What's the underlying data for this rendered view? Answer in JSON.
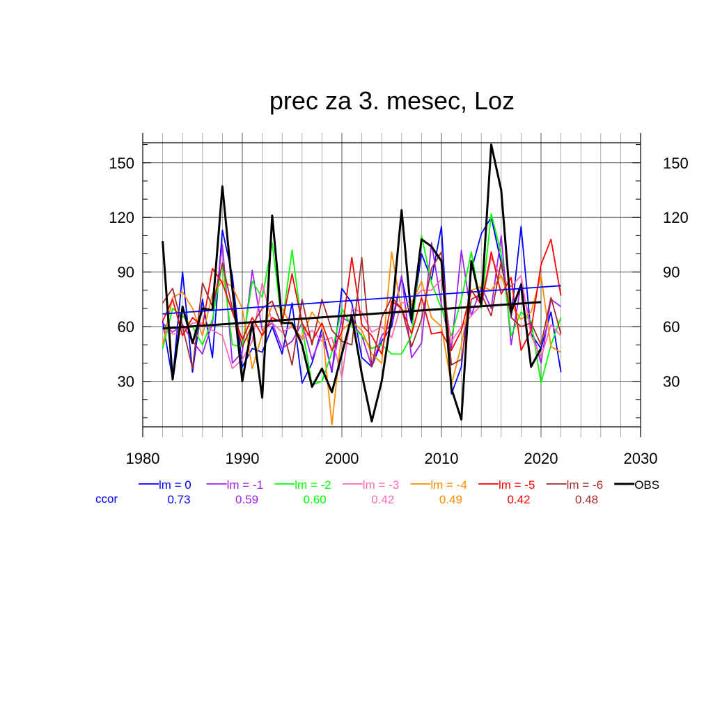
{
  "chart_data": {
    "type": "line",
    "title": "prec za 3. mesec, Loz",
    "xlim": [
      1980,
      2030
    ],
    "ylim": [
      5,
      161
    ],
    "x_ticks": [
      1980,
      1990,
      2000,
      2010,
      2020,
      2030
    ],
    "y_ticks": [
      30,
      60,
      90,
      120,
      150
    ],
    "grid": true,
    "legend_position": "below",
    "ccor_label": "ccor",
    "x": [
      1982,
      1983,
      1984,
      1985,
      1986,
      1987,
      1988,
      1989,
      1990,
      1991,
      1992,
      1993,
      1994,
      1995,
      1996,
      1997,
      1998,
      1999,
      2000,
      2001,
      2002,
      2003,
      2004,
      2005,
      2006,
      2007,
      2008,
      2009,
      2010,
      2011,
      2012,
      2013,
      2014,
      2015,
      2016,
      2017,
      2018,
      2019,
      2020,
      2021,
      2022
    ],
    "series": [
      {
        "name": "lm = 0",
        "ccor": "0.73",
        "color": "#0000ff",
        "values": [
          63,
          31,
          90,
          35,
          75,
          43,
          113,
          88,
          38,
          48,
          46,
          60,
          45,
          73,
          29,
          40,
          59,
          35,
          81,
          73,
          43,
          38,
          52,
          60,
          87,
          62,
          100,
          86,
          115,
          23,
          38,
          91,
          111,
          120,
          95,
          65,
          115,
          56,
          48,
          68,
          35
        ],
        "trend": [
          67.0,
          82.5
        ]
      },
      {
        "name": "lm = -1",
        "ccor": "0.59",
        "color": "#a020f0",
        "values": [
          62,
          57,
          61,
          52,
          45,
          62,
          105,
          40,
          46,
          91,
          58,
          62,
          48,
          52,
          62,
          42,
          56,
          36,
          65,
          62,
          55,
          38,
          55,
          62,
          88,
          43,
          51,
          106,
          72,
          48,
          102,
          66,
          82,
          70,
          110,
          50,
          84,
          60,
          40,
          75,
          71
        ],
        "trend": null
      },
      {
        "name": "lm = -2",
        "ccor": "0.60",
        "color": "#00ff00",
        "values": [
          48,
          70,
          66,
          60,
          50,
          64,
          95,
          50,
          49,
          85,
          76,
          106,
          61,
          102,
          60,
          28,
          30,
          46,
          70,
          60,
          55,
          48,
          50,
          45,
          45,
          55,
          110,
          84,
          70,
          55,
          75,
          101,
          70,
          122,
          100,
          55,
          68,
          63,
          29,
          50,
          65
        ],
        "trend": null
      },
      {
        "name": "lm = -3",
        "ccor": "0.42",
        "color": "#ff69b4",
        "values": [
          58,
          56,
          56,
          62,
          62,
          58,
          55,
          37,
          42,
          52,
          84,
          62,
          57,
          60,
          53,
          58,
          52,
          54,
          32,
          70,
          68,
          57,
          60,
          54,
          73,
          74,
          80,
          80,
          86,
          52,
          60,
          66,
          72,
          98,
          87,
          82,
          88,
          55,
          43,
          61,
          55
        ],
        "trend": null
      },
      {
        "name": "lm = -4",
        "ccor": "0.49",
        "color": "#ff8c00",
        "values": [
          50,
          76,
          79,
          70,
          55,
          78,
          85,
          82,
          70,
          37,
          56,
          72,
          70,
          60,
          54,
          68,
          60,
          6,
          58,
          63,
          58,
          45,
          40,
          101,
          68,
          72,
          85,
          65,
          60,
          28,
          50,
          80,
          82,
          80,
          88,
          72,
          64,
          68,
          88,
          49,
          46
        ],
        "trend": null
      },
      {
        "name": "lm = -5",
        "ccor": "0.42",
        "color": "#ff0000",
        "values": [
          63,
          75,
          55,
          65,
          60,
          92,
          84,
          68,
          53,
          65,
          55,
          65,
          62,
          89,
          62,
          52,
          62,
          47,
          57,
          98,
          61,
          55,
          45,
          74,
          70,
          56,
          76,
          56,
          57,
          47,
          58,
          80,
          72,
          101,
          78,
          87,
          47,
          58,
          94,
          108,
          77
        ],
        "trend": null
      },
      {
        "name": "lm = -6",
        "ccor": "0.48",
        "color": "#a52a2a",
        "values": [
          73,
          81,
          60,
          37,
          84,
          71,
          95,
          70,
          49,
          61,
          70,
          74,
          60,
          39,
          75,
          50,
          75,
          58,
          52,
          50,
          98,
          38,
          65,
          76,
          70,
          49,
          64,
          92,
          101,
          39,
          42,
          75,
          78,
          66,
          96,
          65,
          60,
          62,
          50,
          76,
          56
        ],
        "trend": null
      },
      {
        "name": "OBS",
        "ccor": "",
        "color": "#000000",
        "values": [
          107,
          31,
          71,
          51,
          70,
          69,
          137,
          81,
          30,
          62,
          21,
          121,
          62,
          62,
          50,
          27,
          37,
          24,
          45,
          66,
          34,
          8,
          30,
          66,
          124,
          64,
          108,
          104,
          96,
          26,
          9,
          96,
          72,
          160,
          135,
          68,
          83,
          38,
          48,
          null,
          null
        ],
        "trend": [
          59.0,
          73.5
        ]
      }
    ]
  }
}
